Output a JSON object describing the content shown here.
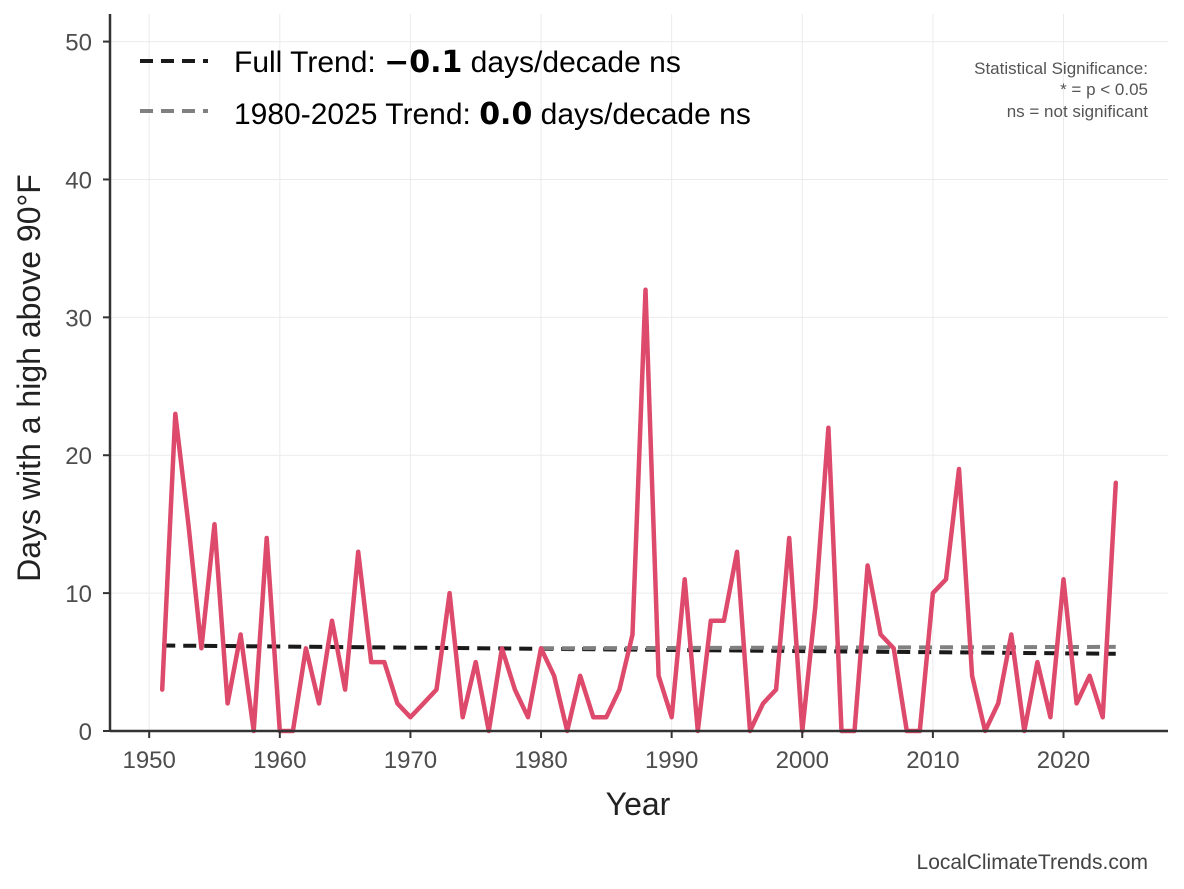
{
  "chart_data": {
    "type": "line",
    "title": "",
    "xlabel": "Year",
    "ylabel": "Days with a high above 90°F",
    "xlim": [
      1947,
      2028
    ],
    "ylim": [
      0,
      52
    ],
    "x_ticks": [
      1950,
      1960,
      1970,
      1980,
      1990,
      2000,
      2010,
      2020
    ],
    "y_ticks": [
      0,
      10,
      20,
      30,
      40,
      50
    ],
    "grid": true,
    "series": [
      {
        "name": "Days above 90°F",
        "color": "#dd4a6b",
        "x": [
          1951,
          1952,
          1953,
          1954,
          1955,
          1956,
          1957,
          1958,
          1959,
          1960,
          1961,
          1962,
          1963,
          1964,
          1965,
          1966,
          1967,
          1968,
          1969,
          1970,
          1971,
          1972,
          1973,
          1974,
          1975,
          1976,
          1977,
          1978,
          1979,
          1980,
          1981,
          1982,
          1983,
          1984,
          1985,
          1986,
          1987,
          1988,
          1989,
          1990,
          1991,
          1992,
          1993,
          1994,
          1995,
          1996,
          1997,
          1998,
          1999,
          2000,
          2001,
          2002,
          2003,
          2004,
          2005,
          2006,
          2007,
          2008,
          2009,
          2010,
          2011,
          2012,
          2013,
          2014,
          2015,
          2016,
          2017,
          2018,
          2019,
          2020,
          2021,
          2022,
          2023,
          2024
        ],
        "values": [
          3,
          23,
          15,
          6,
          15,
          2,
          7,
          0,
          14,
          0,
          0,
          6,
          2,
          8,
          3,
          13,
          5,
          5,
          2,
          1,
          2,
          3,
          10,
          1,
          5,
          0,
          6,
          3,
          1,
          6,
          4,
          0,
          4,
          1,
          1,
          3,
          7,
          32,
          4,
          1,
          11,
          0,
          8,
          8,
          13,
          0,
          2,
          3,
          14,
          0,
          9,
          22,
          0,
          0,
          12,
          7,
          6,
          0,
          0,
          10,
          11,
          19,
          4,
          0,
          2,
          7,
          0,
          5,
          1,
          11,
          2,
          4,
          1,
          18
        ]
      }
    ],
    "trends": [
      {
        "name": "Full Trend",
        "color": "#1a1a1a",
        "x": [
          1951,
          2024
        ],
        "y": [
          6.2,
          5.6
        ]
      },
      {
        "name": "1980-2025 Trend",
        "color": "#808080",
        "x": [
          1980,
          2024
        ],
        "y": [
          6.0,
          6.1
        ]
      }
    ],
    "legend": {
      "position": "top-left",
      "entries": [
        {
          "prefix": "Full Trend: ",
          "value": "−0.1",
          "suffix": " days/decade ns",
          "color": "#1a1a1a"
        },
        {
          "prefix": "1980-2025 Trend: ",
          "value": "0.0",
          "suffix": " days/decade ns",
          "color": "#808080"
        }
      ]
    },
    "significance_note": {
      "title": "Statistical Significance:",
      "line1": "* = p < 0.05",
      "line2": "ns = not significant"
    },
    "credit": "LocalClimateTrends.com"
  }
}
